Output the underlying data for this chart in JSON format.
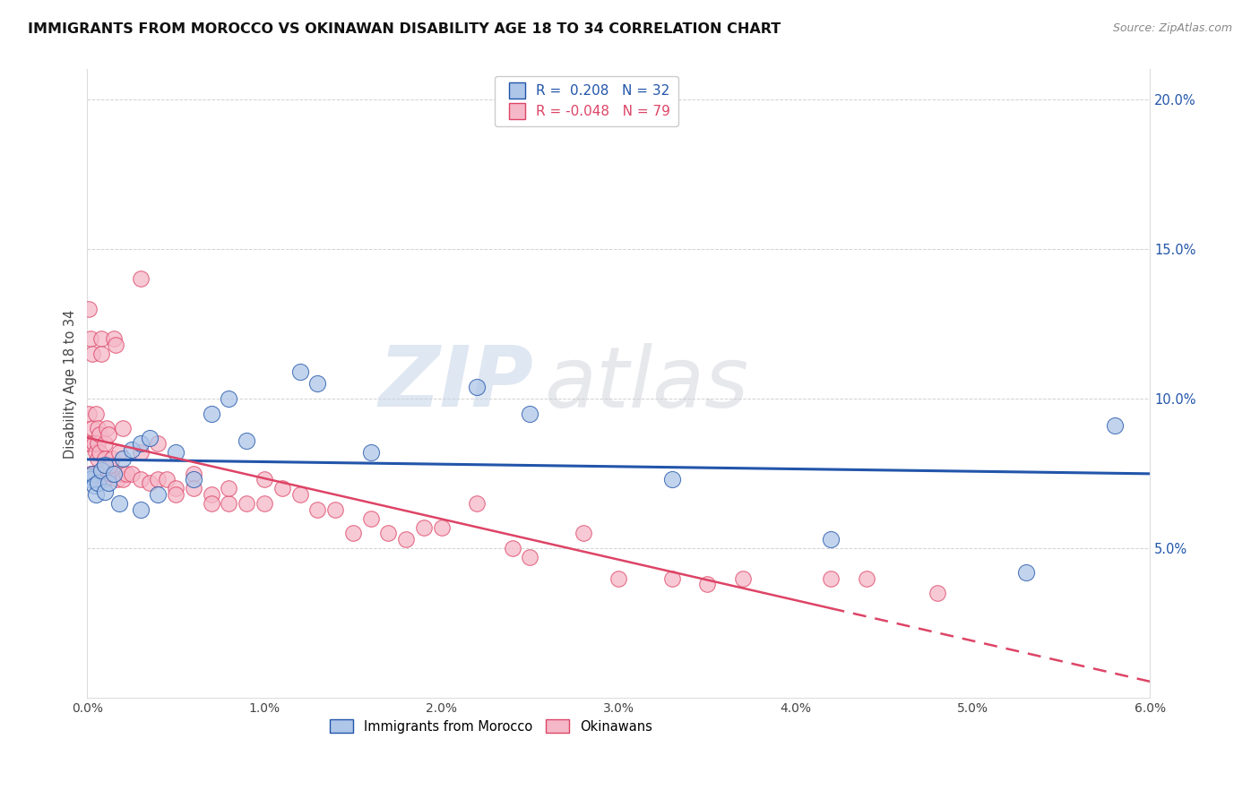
{
  "title": "IMMIGRANTS FROM MOROCCO VS OKINAWAN DISABILITY AGE 18 TO 34 CORRELATION CHART",
  "source": "Source: ZipAtlas.com",
  "ylabel": "Disability Age 18 to 34",
  "watermark": "ZIPatlas",
  "blue_label": "Immigrants from Morocco",
  "pink_label": "Okinawans",
  "blue_R": "0.208",
  "blue_N": "32",
  "pink_R": "-0.048",
  "pink_N": "79",
  "blue_color": "#aec6e8",
  "pink_color": "#f5b8c8",
  "blue_line_color": "#2255aa",
  "pink_line_color": "#dd4466",
  "xlim": [
    0.0,
    0.06
  ],
  "ylim": [
    0.0,
    0.21
  ],
  "yticks": [
    0.05,
    0.1,
    0.15,
    0.2
  ],
  "xticks": [
    0.0,
    0.01,
    0.02,
    0.03,
    0.04,
    0.05,
    0.06
  ],
  "blue_scatter_x": [
    0.0001,
    0.0002,
    0.0003,
    0.0004,
    0.0005,
    0.0006,
    0.0008,
    0.001,
    0.001,
    0.0012,
    0.0015,
    0.0018,
    0.002,
    0.0025,
    0.003,
    0.003,
    0.0035,
    0.004,
    0.005,
    0.006,
    0.007,
    0.008,
    0.009,
    0.012,
    0.013,
    0.016,
    0.022,
    0.025,
    0.033,
    0.042,
    0.053,
    0.058
  ],
  "blue_scatter_y": [
    0.074,
    0.073,
    0.075,
    0.071,
    0.068,
    0.072,
    0.076,
    0.078,
    0.069,
    0.072,
    0.075,
    0.065,
    0.08,
    0.083,
    0.085,
    0.063,
    0.087,
    0.068,
    0.082,
    0.073,
    0.095,
    0.1,
    0.086,
    0.109,
    0.105,
    0.082,
    0.104,
    0.095,
    0.073,
    0.053,
    0.042,
    0.091
  ],
  "pink_scatter_x": [
    0.0001,
    0.0001,
    0.0001,
    0.0002,
    0.0002,
    0.0002,
    0.0003,
    0.0003,
    0.0003,
    0.0004,
    0.0004,
    0.0005,
    0.0005,
    0.0005,
    0.0006,
    0.0006,
    0.0006,
    0.0007,
    0.0007,
    0.0007,
    0.0008,
    0.0008,
    0.0009,
    0.001,
    0.001,
    0.001,
    0.0011,
    0.0012,
    0.0013,
    0.0013,
    0.0014,
    0.0015,
    0.0016,
    0.0017,
    0.0018,
    0.002,
    0.002,
    0.002,
    0.0022,
    0.0025,
    0.003,
    0.003,
    0.003,
    0.0035,
    0.004,
    0.004,
    0.0045,
    0.005,
    0.005,
    0.006,
    0.006,
    0.007,
    0.007,
    0.008,
    0.008,
    0.009,
    0.01,
    0.01,
    0.011,
    0.012,
    0.013,
    0.014,
    0.015,
    0.016,
    0.017,
    0.018,
    0.019,
    0.02,
    0.022,
    0.024,
    0.025,
    0.028,
    0.03,
    0.033,
    0.035,
    0.037,
    0.042,
    0.044,
    0.048
  ],
  "pink_scatter_y": [
    0.13,
    0.095,
    0.085,
    0.12,
    0.085,
    0.075,
    0.115,
    0.09,
    0.075,
    0.085,
    0.075,
    0.095,
    0.082,
    0.075,
    0.09,
    0.085,
    0.08,
    0.088,
    0.082,
    0.075,
    0.12,
    0.115,
    0.075,
    0.085,
    0.08,
    0.073,
    0.09,
    0.088,
    0.075,
    0.078,
    0.08,
    0.12,
    0.118,
    0.073,
    0.082,
    0.09,
    0.075,
    0.073,
    0.075,
    0.075,
    0.14,
    0.082,
    0.073,
    0.072,
    0.085,
    0.073,
    0.073,
    0.07,
    0.068,
    0.075,
    0.07,
    0.068,
    0.065,
    0.065,
    0.07,
    0.065,
    0.073,
    0.065,
    0.07,
    0.068,
    0.063,
    0.063,
    0.055,
    0.06,
    0.055,
    0.053,
    0.057,
    0.057,
    0.065,
    0.05,
    0.047,
    0.055,
    0.04,
    0.04,
    0.038,
    0.04,
    0.04,
    0.04,
    0.035
  ],
  "pink_line_solid_end": 0.042,
  "pink_line_dashed_end": 0.06
}
